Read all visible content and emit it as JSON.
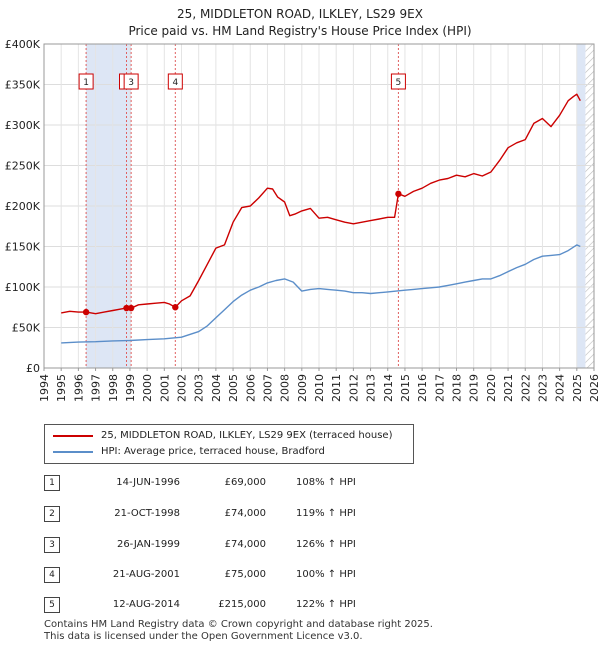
{
  "chart_data": {
    "type": "line",
    "title": "25, MIDDLETON ROAD, ILKLEY, LS29 9EX",
    "subtitle": "Price paid vs. HM Land Registry's House Price Index (HPI)",
    "xlim": [
      1994,
      2026
    ],
    "ylim": [
      0,
      400000
    ],
    "x_ticks": [
      "1994",
      "1995",
      "1996",
      "1997",
      "1998",
      "1999",
      "2000",
      "2001",
      "2002",
      "2003",
      "2004",
      "2005",
      "2006",
      "2007",
      "2008",
      "2009",
      "2010",
      "2011",
      "2012",
      "2013",
      "2014",
      "2015",
      "2016",
      "2017",
      "2018",
      "2019",
      "2020",
      "2021",
      "2022",
      "2023",
      "2024",
      "2025",
      "2026"
    ],
    "y_ticks": [
      {
        "value": 0,
        "label": "£0"
      },
      {
        "value": 50000,
        "label": "£50K"
      },
      {
        "value": 100000,
        "label": "£100K"
      },
      {
        "value": 150000,
        "label": "£150K"
      },
      {
        "value": 200000,
        "label": "£200K"
      },
      {
        "value": 250000,
        "label": "£250K"
      },
      {
        "value": 300000,
        "label": "£300K"
      },
      {
        "value": 350000,
        "label": "£350K"
      },
      {
        "value": 400000,
        "label": "£400K"
      }
    ],
    "shaded_ranges": [
      [
        1996.45,
        1999.07
      ],
      [
        2025.0,
        2025.5
      ]
    ],
    "hatched_range": [
      2025.5,
      2026
    ],
    "series": [
      {
        "name": "25, MIDDLETON ROAD, ILKLEY, LS29 9EX (terraced house)",
        "color": "#cc0000",
        "x": [
          1995.0,
          1995.5,
          1996.0,
          1996.45,
          1997.0,
          1997.5,
          1998.0,
          1998.5,
          1998.8,
          1999.07,
          1999.5,
          2000.0,
          2000.5,
          2001.0,
          2001.3,
          2001.64,
          2002.0,
          2002.5,
          2003.0,
          2003.5,
          2004.0,
          2004.5,
          2005.0,
          2005.5,
          2006.0,
          2006.5,
          2007.0,
          2007.3,
          2007.6,
          2008.0,
          2008.3,
          2008.6,
          2009.0,
          2009.5,
          2010.0,
          2010.5,
          2011.0,
          2011.5,
          2012.0,
          2012.5,
          2013.0,
          2013.5,
          2014.0,
          2014.4,
          2014.62,
          2015.0,
          2015.5,
          2016.0,
          2016.5,
          2017.0,
          2017.5,
          2018.0,
          2018.5,
          2019.0,
          2019.5,
          2020.0,
          2020.5,
          2021.0,
          2021.5,
          2022.0,
          2022.5,
          2023.0,
          2023.5,
          2024.0,
          2024.5,
          2024.8,
          2025.0,
          2025.2
        ],
        "values": [
          68000,
          70000,
          69000,
          69000,
          67000,
          69000,
          71000,
          73000,
          74000,
          74000,
          78000,
          79000,
          80000,
          81000,
          79000,
          75000,
          83000,
          89000,
          108000,
          128000,
          148000,
          152000,
          180000,
          198000,
          200000,
          210000,
          222000,
          221000,
          211000,
          205000,
          188000,
          190000,
          194000,
          197000,
          185000,
          186000,
          183000,
          180000,
          178000,
          180000,
          182000,
          184000,
          186000,
          186000,
          215000,
          212000,
          218000,
          222000,
          228000,
          232000,
          234000,
          238000,
          236000,
          240000,
          237000,
          242000,
          256000,
          272000,
          278000,
          282000,
          302000,
          308000,
          298000,
          312000,
          330000,
          335000,
          338000,
          330000
        ]
      },
      {
        "name": "HPI: Average price, terraced house, Bradford",
        "color": "#5b8ec9",
        "x": [
          1995.0,
          1996.0,
          1997.0,
          1998.0,
          1999.0,
          2000.0,
          2001.0,
          2002.0,
          2003.0,
          2003.5,
          2004.0,
          2004.5,
          2005.0,
          2005.5,
          2006.0,
          2006.5,
          2007.0,
          2007.5,
          2008.0,
          2008.5,
          2009.0,
          2009.5,
          2010.0,
          2010.5,
          2011.0,
          2011.5,
          2012.0,
          2012.5,
          2013.0,
          2013.5,
          2014.0,
          2014.5,
          2015.0,
          2015.5,
          2016.0,
          2016.5,
          2017.0,
          2017.5,
          2018.0,
          2018.5,
          2019.0,
          2019.5,
          2020.0,
          2020.5,
          2021.0,
          2021.5,
          2022.0,
          2022.5,
          2023.0,
          2023.5,
          2024.0,
          2024.5,
          2025.0,
          2025.2
        ],
        "values": [
          31000,
          32000,
          32500,
          33500,
          34000,
          35000,
          36000,
          38000,
          45000,
          52000,
          62000,
          72000,
          82000,
          90000,
          96000,
          100000,
          105000,
          108000,
          110000,
          106000,
          95000,
          97000,
          98000,
          97000,
          96000,
          95000,
          93000,
          93000,
          92000,
          93000,
          94000,
          95000,
          96000,
          97000,
          98000,
          99000,
          100000,
          102000,
          104000,
          106000,
          108000,
          110000,
          110000,
          114000,
          119000,
          124000,
          128000,
          134000,
          138000,
          139000,
          140000,
          145000,
          152000,
          150000
        ]
      }
    ],
    "sales": [
      {
        "n": "1",
        "x": 1996.45,
        "value": 69000
      },
      {
        "n": "2",
        "x": 1998.8,
        "value": 74000
      },
      {
        "n": "3",
        "x": 1999.07,
        "value": 74000
      },
      {
        "n": "4",
        "x": 2001.64,
        "value": 75000
      },
      {
        "n": "5",
        "x": 2014.62,
        "value": 215000
      }
    ]
  },
  "legend": {
    "items": [
      {
        "label": "25, MIDDLETON ROAD, ILKLEY, LS29 9EX (terraced house)",
        "color": "#cc0000"
      },
      {
        "label": "HPI: Average price, terraced house, Bradford",
        "color": "#5b8ec9"
      }
    ]
  },
  "table": {
    "rows": [
      {
        "n": "1",
        "date": "14-JUN-1996",
        "price": "£69,000",
        "hpi": "108% ↑ HPI"
      },
      {
        "n": "2",
        "date": "21-OCT-1998",
        "price": "£74,000",
        "hpi": "119% ↑ HPI"
      },
      {
        "n": "3",
        "date": "26-JAN-1999",
        "price": "£74,000",
        "hpi": "126% ↑ HPI"
      },
      {
        "n": "4",
        "date": "21-AUG-2001",
        "price": "£75,000",
        "hpi": "100% ↑ HPI"
      },
      {
        "n": "5",
        "date": "12-AUG-2014",
        "price": "£215,000",
        "hpi": "122% ↑ HPI"
      }
    ]
  },
  "footer": {
    "line1": "Contains HM Land Registry data © Crown copyright and database right 2025.",
    "line2": "This data is licensed under the Open Government Licence v3.0."
  }
}
